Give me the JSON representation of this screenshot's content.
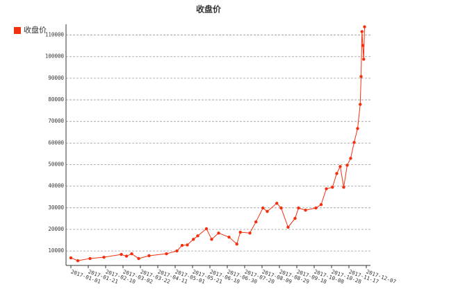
{
  "chart_data": {
    "type": "line",
    "title": "收盘价",
    "x": [
      "2017-01-01",
      "2017-01-09",
      "2017-01-23",
      "2017-02-08",
      "2017-02-28",
      "2017-03-06",
      "2017-03-12",
      "2017-03-20",
      "2017-04-01",
      "2017-04-21",
      "2017-05-03",
      "2017-05-09",
      "2017-05-15",
      "2017-05-22",
      "2017-05-27",
      "2017-06-06",
      "2017-06-12",
      "2017-06-20",
      "2017-07-02",
      "2017-07-11",
      "2017-07-15",
      "2017-07-26",
      "2017-08-02",
      "2017-08-10",
      "2017-08-15",
      "2017-08-26",
      "2017-08-31",
      "2017-09-08",
      "2017-09-16",
      "2017-09-20",
      "2017-09-28",
      "2017-10-10",
      "2017-10-16",
      "2017-10-22",
      "2017-10-29",
      "2017-11-03",
      "2017-11-07",
      "2017-11-11",
      "2017-11-15",
      "2017-11-19",
      "2017-11-23",
      "2017-11-27",
      "2017-11-30",
      "2017-12-01",
      "2017-12-02",
      "2017-12-03",
      "2017-12-04",
      "2017-12-05"
    ],
    "series": [
      {
        "name": "收盘价",
        "color": "#f2300f",
        "values": [
          6800,
          5500,
          6500,
          7100,
          8400,
          7600,
          8700,
          6500,
          7800,
          8700,
          10000,
          12600,
          12800,
          15400,
          17000,
          20300,
          15400,
          18300,
          16400,
          13200,
          18700,
          18300,
          23500,
          29900,
          28300,
          32100,
          29900,
          21000,
          25100,
          29900,
          28900,
          29900,
          31500,
          38800,
          39500,
          45900,
          49100,
          39500,
          49700,
          52900,
          60300,
          66700,
          77900,
          90800,
          111600,
          105200,
          98800,
          113800
        ]
      }
    ],
    "xlim": [
      "2017-01-01",
      "2017-12-07"
    ],
    "xticks": [
      "2017-01-01",
      "2017-01-21",
      "2017-02-10",
      "2017-03-02",
      "2017-03-22",
      "2017-04-11",
      "2017-05-01",
      "2017-05-21",
      "2017-06-10",
      "2017-06-30",
      "2017-07-20",
      "2017-08-09",
      "2017-08-29",
      "2017-09-18",
      "2017-10-08",
      "2017-10-28",
      "2017-11-17",
      "2017-12-07"
    ],
    "ylim": [
      3300,
      115000
    ],
    "yticks": [
      10000,
      20000,
      30000,
      40000,
      50000,
      60000,
      70000,
      80000,
      90000,
      100000,
      110000
    ],
    "grid": true,
    "legend": "top-left"
  }
}
